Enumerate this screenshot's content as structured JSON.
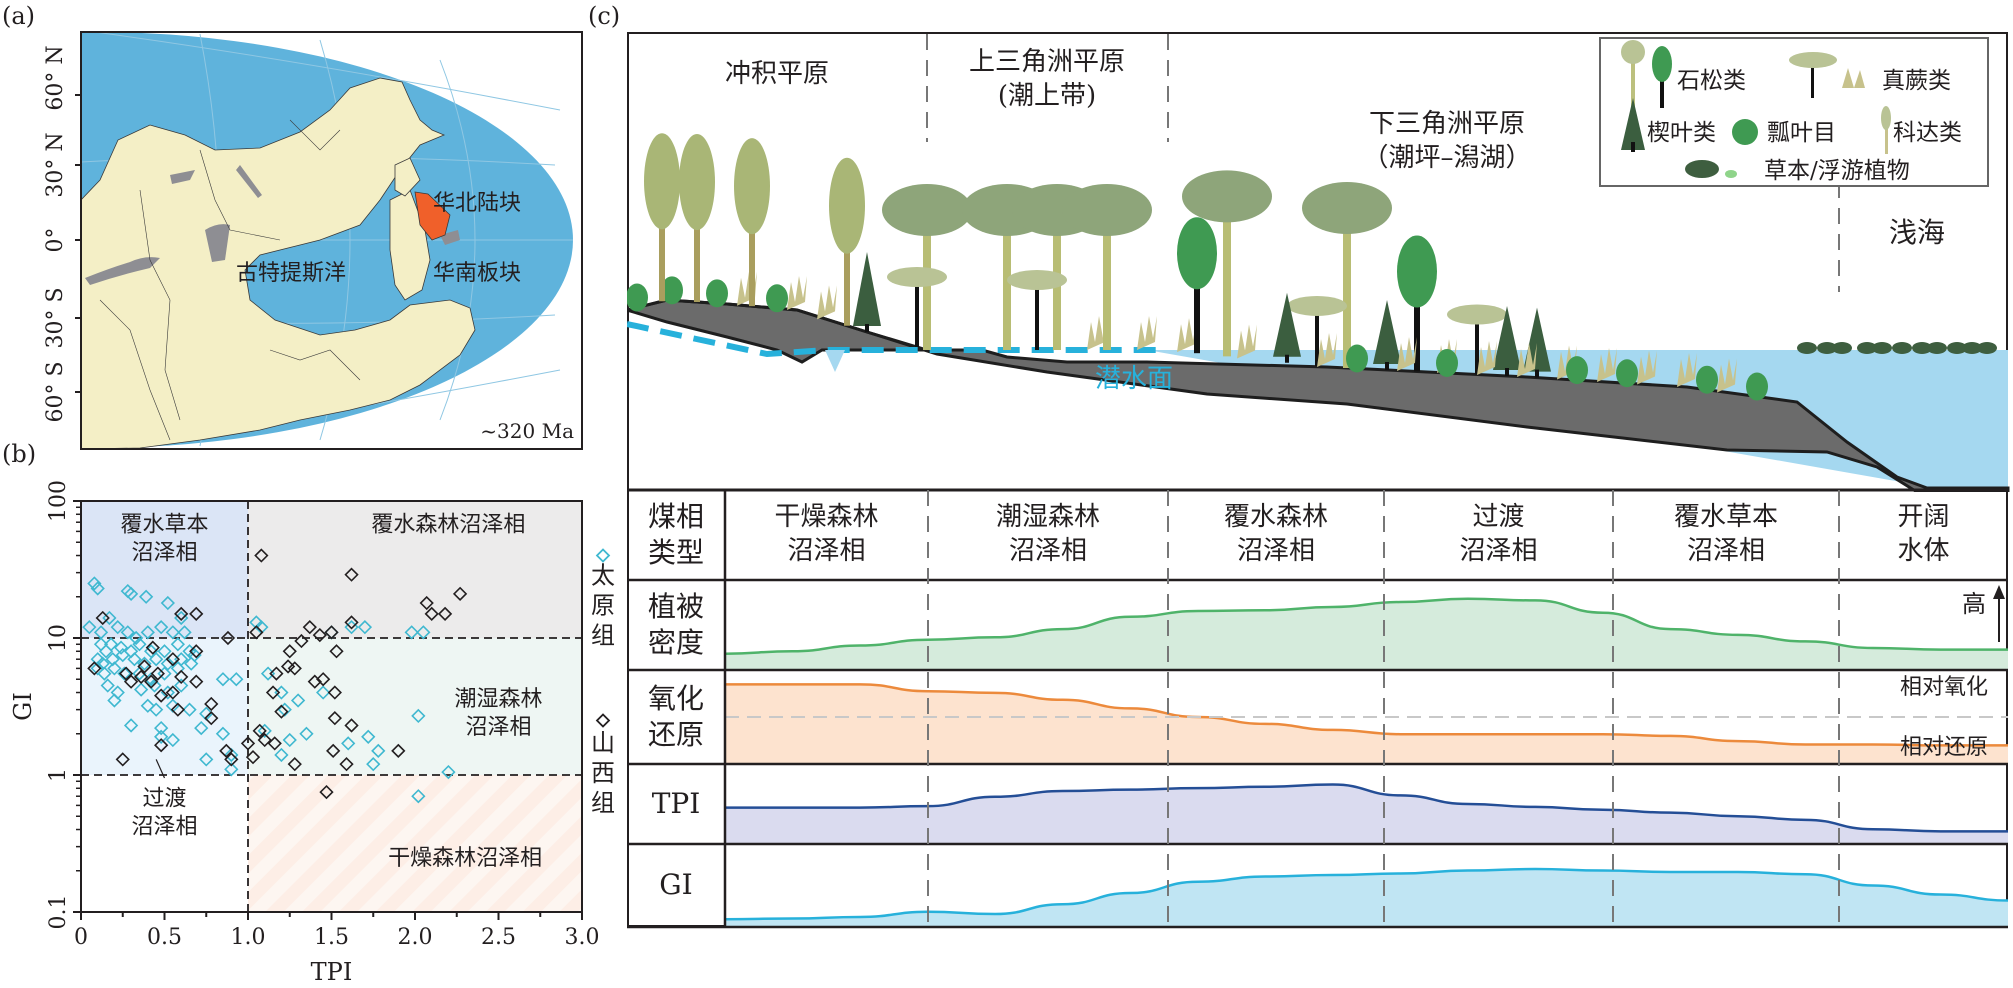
{
  "panel_labels": {
    "a": "(a)",
    "b": "(b)",
    "c": "(c)"
  },
  "panel_a": {
    "lat_labels": [
      "60° N",
      "30° N",
      "0°",
      "30° S",
      "60° S"
    ],
    "age_label": "~320 Ma",
    "place_labels": {
      "north_china": "华北陆块",
      "south_china": "华南板块",
      "paleotethys": "古特提斯洋"
    },
    "colors": {
      "ocean": "#5fb3dc",
      "land": "#f4efc6",
      "coal": "#8e8e93",
      "north_china_block": "#f0602a"
    }
  },
  "chart_data": {
    "type": "scatter",
    "xlabel": "TPI",
    "ylabel": "GI",
    "xlim": [
      0,
      3.0
    ],
    "ylim": [
      0.1,
      100
    ],
    "yscale": "log",
    "xticks": [
      "0",
      "0.5",
      "1.0",
      "1.5",
      "2.0",
      "2.5",
      "3.0"
    ],
    "yticks": [
      "0.1",
      "1",
      "10",
      "100"
    ],
    "thresholds": {
      "TPI": 1.0,
      "GI": [
        1,
        10
      ]
    },
    "regions": [
      {
        "name": "覆水草本\n沼泽相",
        "color": "#dbe5f6"
      },
      {
        "name": "覆水森林沼泽相",
        "color": "#ecebeb"
      },
      {
        "name": "潮湿森林\n沼泽相",
        "color": "#eef6f3"
      },
      {
        "name": "过渡\n沼泽相",
        "color": "#eaf4fc"
      },
      {
        "name": "干燥森林沼泽相",
        "color": "#fdf0ea"
      }
    ],
    "legend": [
      {
        "name": "太原组",
        "marker": "diamond",
        "color": "#3fb8d0"
      },
      {
        "name": "山西组",
        "marker": "diamond",
        "color": "#231f20"
      }
    ],
    "legend_position": "right",
    "series": [
      {
        "name": "太原组",
        "points": [
          [
            0.08,
            25
          ],
          [
            0.1,
            23
          ],
          [
            0.28,
            22
          ],
          [
            0.3,
            21
          ],
          [
            0.39,
            20
          ],
          [
            0.52,
            18
          ],
          [
            0.6,
            14
          ],
          [
            0.05,
            12
          ],
          [
            0.12,
            11
          ],
          [
            0.17,
            14
          ],
          [
            0.22,
            12
          ],
          [
            0.28,
            11
          ],
          [
            0.33,
            10
          ],
          [
            0.4,
            11
          ],
          [
            0.48,
            12
          ],
          [
            0.55,
            11
          ],
          [
            0.62,
            11
          ],
          [
            0.12,
            9
          ],
          [
            0.15,
            8
          ],
          [
            0.18,
            9
          ],
          [
            0.24,
            8.5
          ],
          [
            0.3,
            8
          ],
          [
            0.35,
            9
          ],
          [
            0.42,
            8
          ],
          [
            0.5,
            8
          ],
          [
            0.58,
            9
          ],
          [
            0.65,
            8
          ],
          [
            0.1,
            7
          ],
          [
            0.13,
            6.5
          ],
          [
            0.19,
            7
          ],
          [
            0.25,
            7.5
          ],
          [
            0.32,
            7
          ],
          [
            0.38,
            6.5
          ],
          [
            0.45,
            7
          ],
          [
            0.52,
            6.5
          ],
          [
            0.6,
            7
          ],
          [
            0.68,
            7.5
          ],
          [
            0.1,
            6
          ],
          [
            0.14,
            5.5
          ],
          [
            0.2,
            6
          ],
          [
            0.26,
            5.5
          ],
          [
            0.35,
            5.5
          ],
          [
            0.42,
            5
          ],
          [
            0.5,
            5.5
          ],
          [
            0.58,
            6
          ],
          [
            0.66,
            6.5
          ],
          [
            0.16,
            4.5
          ],
          [
            0.22,
            4
          ],
          [
            0.36,
            4.2
          ],
          [
            0.44,
            4.5
          ],
          [
            0.52,
            4
          ],
          [
            0.6,
            4.5
          ],
          [
            0.85,
            5
          ],
          [
            0.93,
            5
          ],
          [
            0.2,
            3.5
          ],
          [
            0.4,
            3.2
          ],
          [
            0.45,
            3
          ],
          [
            0.55,
            3.2
          ],
          [
            0.65,
            3
          ],
          [
            0.75,
            2.8
          ],
          [
            0.3,
            2.3
          ],
          [
            0.48,
            2.2
          ],
          [
            0.72,
            2.2
          ],
          [
            0.85,
            2
          ],
          [
            0.48,
            1.9
          ],
          [
            0.55,
            1.8
          ],
          [
            0.75,
            1.3
          ],
          [
            0.9,
            1.4
          ],
          [
            0.9,
            1.1
          ],
          [
            1.05,
            13
          ],
          [
            1.08,
            12
          ],
          [
            1.12,
            5.5
          ],
          [
            1.2,
            4
          ],
          [
            1.22,
            3
          ],
          [
            1.1,
            2.1
          ],
          [
            1.25,
            1.8
          ],
          [
            1.3,
            3.5
          ],
          [
            1.35,
            2
          ],
          [
            1.45,
            4
          ],
          [
            1.5,
            11
          ],
          [
            1.6,
            1.7
          ],
          [
            1.62,
            12
          ],
          [
            1.7,
            12
          ],
          [
            1.72,
            1.9
          ],
          [
            1.75,
            1.2
          ],
          [
            1.78,
            1.5
          ],
          [
            1.2,
            1.4
          ],
          [
            2.02,
            2.7
          ],
          [
            2.2,
            1.05
          ],
          [
            2.02,
            0.7
          ],
          [
            1.98,
            11
          ],
          [
            2.05,
            11
          ]
        ]
      },
      {
        "name": "山西组",
        "points": [
          [
            1.08,
            40
          ],
          [
            1.62,
            29
          ],
          [
            2.27,
            21
          ],
          [
            2.07,
            18
          ],
          [
            2.1,
            15
          ],
          [
            2.18,
            15
          ],
          [
            0.13,
            14
          ],
          [
            0.6,
            15
          ],
          [
            0.69,
            15
          ],
          [
            1.05,
            11
          ],
          [
            1.37,
            12
          ],
          [
            1.5,
            11
          ],
          [
            1.62,
            13
          ],
          [
            0.88,
            10
          ],
          [
            1.32,
            9.5
          ],
          [
            1.25,
            8
          ],
          [
            1.53,
            8
          ],
          [
            1.43,
            10.5
          ],
          [
            0.08,
            6
          ],
          [
            0.27,
            5.5
          ],
          [
            0.38,
            6.2
          ],
          [
            0.69,
            8
          ],
          [
            0.43,
            8.5
          ],
          [
            0.3,
            4.8
          ],
          [
            0.36,
            5.2
          ],
          [
            0.46,
            5.5
          ],
          [
            0.6,
            5.2
          ],
          [
            0.69,
            4.8
          ],
          [
            0.42,
            4.8
          ],
          [
            0.55,
            7
          ],
          [
            0.48,
            3.8
          ],
          [
            0.55,
            4
          ],
          [
            1.17,
            5.5
          ],
          [
            1.24,
            6.2
          ],
          [
            1.28,
            6
          ],
          [
            1.4,
            4.8
          ],
          [
            1.45,
            5
          ],
          [
            1.52,
            4
          ],
          [
            1.15,
            4
          ],
          [
            1.2,
            2.9
          ],
          [
            0.58,
            3
          ],
          [
            0.78,
            3.3
          ],
          [
            0.78,
            2.6
          ],
          [
            1.52,
            2.6
          ],
          [
            1.62,
            2.3
          ],
          [
            1.07,
            2.1
          ],
          [
            1.1,
            1.8
          ],
          [
            1.16,
            1.7
          ],
          [
            1.0,
            1.7
          ],
          [
            0.87,
            1.5
          ],
          [
            0.9,
            1.3
          ],
          [
            1.03,
            1.35
          ],
          [
            1.28,
            1.2
          ],
          [
            1.51,
            1.5
          ],
          [
            1.59,
            1.2
          ],
          [
            1.9,
            1.5
          ],
          [
            0.25,
            1.3
          ],
          [
            0.48,
            1.65
          ],
          [
            1.47,
            0.75
          ]
        ]
      }
    ]
  },
  "panel_c": {
    "zones": [
      {
        "title": "冲积平原"
      },
      {
        "title": "上三角洲平原",
        "subtitle": "(潮上带)"
      },
      {
        "title": "下三角洲平原",
        "subtitle": "（潮坪–潟湖）"
      },
      {
        "title": "浅海"
      }
    ],
    "water_table_label": "潜水面",
    "legend_items": [
      "石松类",
      "真蕨类",
      "楔叶类",
      "瓢叶目",
      "科达类",
      "草本/浮游植物"
    ],
    "table": {
      "row_headers": [
        "煤相\n类型",
        "植被\n密度",
        "氧化\n还原",
        "TPI",
        "GI"
      ],
      "facies": [
        "干燥森林\n沼泽相",
        "潮湿森林\n沼泽相",
        "覆水森林\n沼泽相",
        "过渡\n沼泽相",
        "覆水草本\n沼泽相",
        "开阔\n水体"
      ],
      "high_label": "高",
      "oxidation_label": "相对氧化",
      "reduction_label": "相对还原"
    },
    "curves": {
      "vegetation_density": {
        "color": "#4fb36a",
        "fill": "#d5ebdc",
        "values": [
          0.15,
          0.18,
          0.25,
          0.32,
          0.35,
          0.45,
          0.6,
          0.67,
          0.68,
          0.72,
          0.78,
          0.82,
          0.8,
          0.65,
          0.45,
          0.38,
          0.3,
          0.22,
          0.2,
          0.2
        ]
      },
      "redox": {
        "color": "#ec8a3c",
        "fill": "#fde3cf",
        "values": [
          0.88,
          0.88,
          0.88,
          0.8,
          0.78,
          0.7,
          0.6,
          0.5,
          0.42,
          0.35,
          0.3,
          0.3,
          0.3,
          0.3,
          0.28,
          0.22,
          0.18,
          0.18,
          0.17,
          0.17
        ]
      },
      "TPI": {
        "color": "#244e96",
        "fill": "#dadbef",
        "values": [
          0.45,
          0.45,
          0.45,
          0.47,
          0.6,
          0.68,
          0.7,
          0.72,
          0.74,
          0.77,
          0.62,
          0.5,
          0.46,
          0.42,
          0.38,
          0.33,
          0.28,
          0.15,
          0.12,
          0.12
        ]
      },
      "GI": {
        "color": "#27b1db",
        "fill": "#c0e5f3",
        "values": [
          0.05,
          0.06,
          0.08,
          0.15,
          0.12,
          0.25,
          0.4,
          0.55,
          0.62,
          0.64,
          0.66,
          0.7,
          0.72,
          0.7,
          0.68,
          0.68,
          0.65,
          0.5,
          0.38,
          0.3
        ]
      }
    }
  }
}
